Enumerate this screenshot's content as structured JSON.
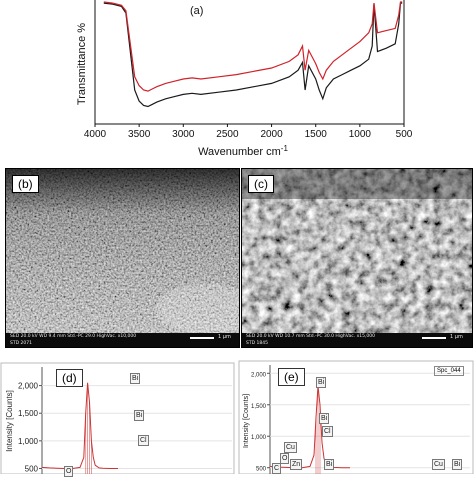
{
  "ftir": {
    "panel_label": "(a)",
    "y_title": "Transmittance %",
    "x_title": "Wavenumber cm",
    "x_title_sup": "-1",
    "colors": {
      "black_series": "#1a1a1a",
      "red_series": "#d0222a"
    }
  },
  "chart_data": [
    {
      "type": "line",
      "xlabel": "Wavenumber cm-1",
      "ylabel": "Transmittance %",
      "xlim": [
        4000,
        500
      ],
      "x_ticks": [
        "4000",
        "3500",
        "3000",
        "2500",
        "2000",
        "1500",
        "1000",
        "500"
      ],
      "series": [
        {
          "color": "#1a1a1a",
          "x": [
            3900,
            3800,
            3700,
            3650,
            3600,
            3550,
            3500,
            3450,
            3400,
            3350,
            3300,
            3200,
            3100,
            3000,
            2900,
            2800,
            2600,
            2400,
            2200,
            2000,
            1800,
            1700,
            1650,
            1620,
            1580,
            1500,
            1460,
            1420,
            1380,
            1300,
            1200,
            1100,
            1000,
            900,
            860,
            840,
            800,
            700,
            600,
            560,
            540,
            520
          ],
          "y": [
            99,
            98,
            96,
            90,
            55,
            20,
            10,
            6,
            5,
            7,
            9,
            12,
            14,
            16,
            17,
            16,
            18,
            20,
            23,
            26,
            32,
            38,
            45,
            20,
            42,
            30,
            20,
            12,
            22,
            30,
            34,
            38,
            42,
            48,
            60,
            98,
            55,
            58,
            62,
            80,
            99,
            99
          ]
        },
        {
          "color": "#d0222a",
          "x": [
            3900,
            3800,
            3700,
            3650,
            3600,
            3550,
            3500,
            3450,
            3400,
            3350,
            3300,
            3200,
            3100,
            3000,
            2900,
            2800,
            2600,
            2400,
            2200,
            2000,
            1800,
            1700,
            1650,
            1620,
            1580,
            1500,
            1460,
            1420,
            1380,
            1300,
            1200,
            1100,
            1000,
            900,
            860,
            840,
            800,
            700,
            600,
            560,
            540,
            520
          ],
          "y": [
            100,
            99,
            97,
            92,
            62,
            32,
            24,
            20,
            19,
            21,
            23,
            26,
            28,
            30,
            31,
            30,
            32,
            34,
            37,
            40,
            46,
            52,
            60,
            38,
            56,
            44,
            36,
            30,
            38,
            46,
            52,
            58,
            64,
            72,
            80,
            99,
            72,
            74,
            76,
            88,
            100,
            100
          ]
        }
      ]
    },
    {
      "type": "line",
      "panel_label": "(d)",
      "ylabel": "Intensity [Counts]",
      "y_ticks": [
        "2,000",
        "1,500",
        "1,000",
        "500"
      ],
      "ylim": [
        400,
        2300
      ],
      "peak_labels": [
        "Bi",
        "Bi",
        "Cl",
        "O"
      ],
      "series": [
        {
          "color": "#cc3333",
          "x": [
            0.0,
            0.4,
            0.8,
            1.2,
            1.6,
            2.0,
            2.2,
            2.3,
            2.4,
            2.5,
            2.6,
            2.7,
            2.8,
            3.0,
            3.2,
            3.6,
            4.0
          ],
          "y": [
            520,
            510,
            505,
            500,
            500,
            520,
            700,
            1500,
            2050,
            1700,
            1000,
            700,
            560,
            510,
            505,
            500,
            500
          ]
        }
      ]
    },
    {
      "type": "line",
      "panel_label": "(e)",
      "ylabel": "Intensity [Counts]",
      "y_ticks": [
        "2,000",
        "1,500",
        "1,000",
        "500"
      ],
      "ylim": [
        400,
        2100
      ],
      "legend": "Spc_044",
      "peak_labels": [
        "Bi",
        "Bi",
        "Cl",
        "Cu",
        "O",
        "Zn",
        "Bi",
        "C",
        "Cu",
        "Bi"
      ],
      "series": [
        {
          "color": "#cc3333",
          "x": [
            0.0,
            0.4,
            0.8,
            1.2,
            1.6,
            2.0,
            2.2,
            2.3,
            2.4,
            2.5,
            2.6,
            2.7,
            2.8,
            3.0,
            3.2,
            3.6,
            4.0
          ],
          "y": [
            520,
            510,
            505,
            500,
            500,
            520,
            700,
            1300,
            1800,
            1500,
            900,
            650,
            540,
            510,
            505,
            500,
            500
          ]
        }
      ]
    }
  ],
  "sem_b": {
    "label": "(b)",
    "info_line1": "SED   20.0 kV   WD 9.4 mm   Std.-PC 29.0   HighVac.   x10,000",
    "info_line2": "STD    2071",
    "scale": "1 μm"
  },
  "sem_c": {
    "label": "(c)",
    "info_line1": "SED   20.0 kV   WD 10.7 mm   Std.-PC 30.0   HighVac.   x15,000",
    "info_line2": "STD    1845",
    "scale": "1 μm"
  },
  "eds_d": {
    "label": "(d)",
    "ylabel": "Intensity [Counts]",
    "ticks": [
      "2,000",
      "1,500",
      "1,000",
      "500"
    ],
    "peaks": [
      "Bi",
      "Bi",
      "Cl",
      "O"
    ]
  },
  "eds_e": {
    "label": "(e)",
    "ylabel": "Intensity [Counts]",
    "ticks": [
      "2,000",
      "1,500",
      "1,000",
      "500"
    ],
    "legend": "Spc_044",
    "peaks": [
      "Bi",
      "Bi",
      "Cl",
      "Cu",
      "O",
      "Zn",
      "Bi",
      "C",
      "Cu",
      "Bi"
    ]
  }
}
